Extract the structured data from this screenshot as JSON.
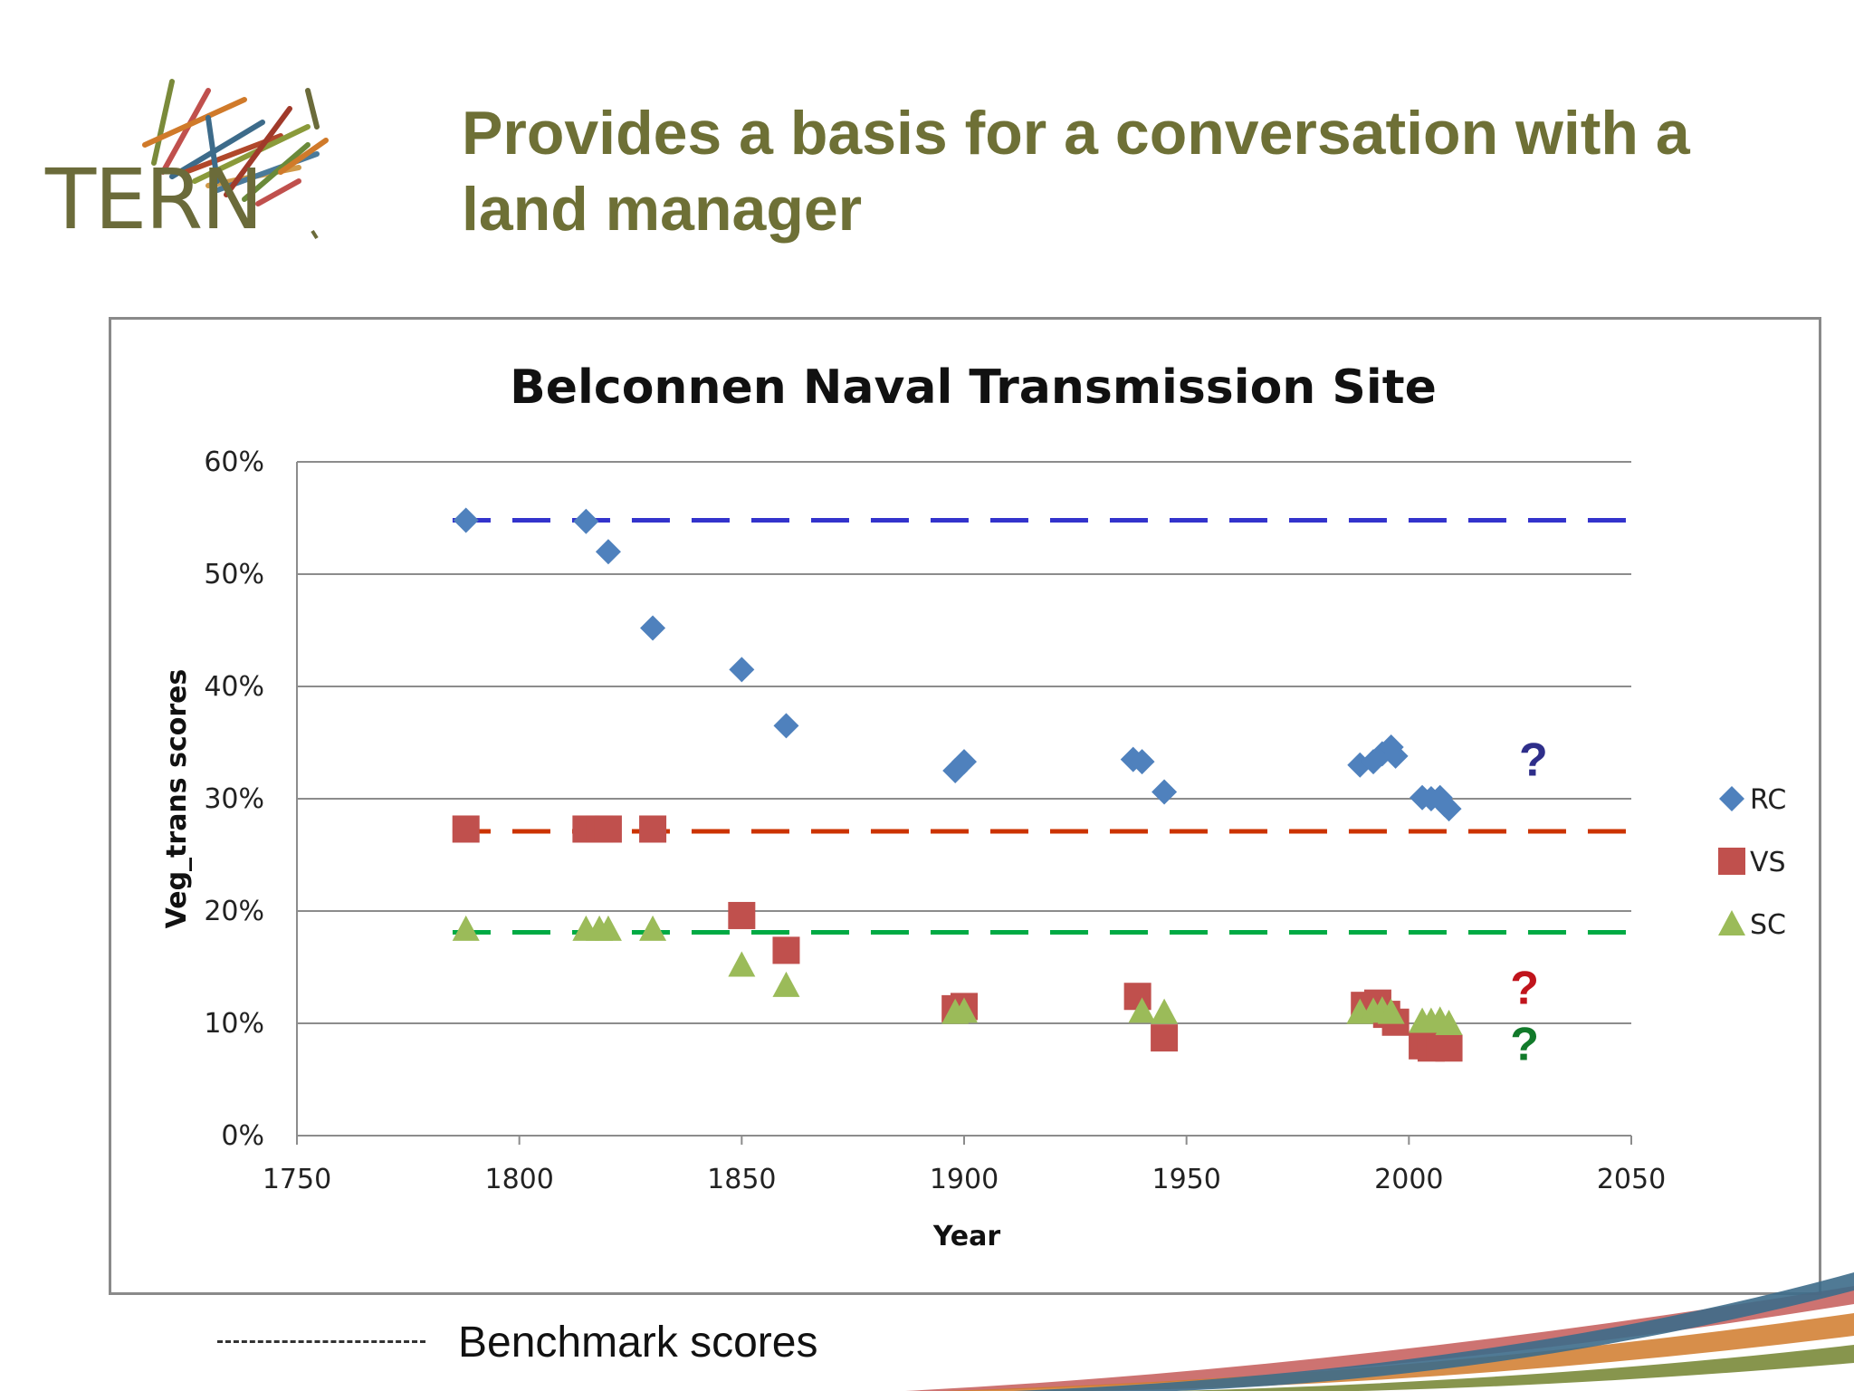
{
  "header": {
    "logo_text": "TERN",
    "title": "Provides a basis for a conversation with a land manager"
  },
  "footer": {
    "benchmark_label": "Benchmark scores"
  },
  "colors": {
    "title": "#6e7036",
    "rc": "#4f81bd",
    "vs": "#c0504d",
    "sc": "#9bbb59",
    "rc_benchmark": "#3333cc",
    "vs_benchmark": "#cc3300",
    "sc_benchmark": "#00aa44"
  },
  "chart_data": {
    "type": "scatter",
    "title": "Belconnen Naval Transmission Site",
    "xlabel": "Year",
    "ylabel": "Veg_trans scores",
    "xlim": [
      1750,
      2050
    ],
    "ylim": [
      0,
      60
    ],
    "x_ticks": [
      "1750",
      "1800",
      "1850",
      "1900",
      "1950",
      "2000",
      "2050"
    ],
    "y_ticks": [
      "0%",
      "10%",
      "20%",
      "30%",
      "40%",
      "50%",
      "60%"
    ],
    "grid": "horizontal",
    "legend_position": "right",
    "series": [
      {
        "name": "RC",
        "marker": "diamond",
        "color": "#4f81bd",
        "points": [
          [
            1788,
            54.8
          ],
          [
            1815,
            54.7
          ],
          [
            1820,
            52.0
          ],
          [
            1830,
            45.2
          ],
          [
            1850,
            41.5
          ],
          [
            1860,
            36.5
          ],
          [
            1898,
            32.5
          ],
          [
            1900,
            33.3
          ],
          [
            1938,
            33.5
          ],
          [
            1940,
            33.3
          ],
          [
            1945,
            30.6
          ],
          [
            1989,
            33.0
          ],
          [
            1992,
            33.3
          ],
          [
            1994,
            34.0
          ],
          [
            1996,
            34.6
          ],
          [
            1997,
            33.8
          ],
          [
            2003,
            30.1
          ],
          [
            2005,
            30.0
          ],
          [
            2007,
            30.1
          ],
          [
            2008,
            29.5
          ],
          [
            2009,
            29.1
          ]
        ]
      },
      {
        "name": "VS",
        "marker": "square",
        "color": "#c0504d",
        "points": [
          [
            1788,
            27.3
          ],
          [
            1815,
            27.3
          ],
          [
            1818,
            27.3
          ],
          [
            1820,
            27.3
          ],
          [
            1830,
            27.3
          ],
          [
            1850,
            19.6
          ],
          [
            1860,
            16.5
          ],
          [
            1898,
            11.3
          ],
          [
            1900,
            11.5
          ],
          [
            1939,
            12.4
          ],
          [
            1945,
            8.7
          ],
          [
            1990,
            11.6
          ],
          [
            1993,
            11.8
          ],
          [
            1995,
            10.8
          ],
          [
            1997,
            10.1
          ],
          [
            2003,
            8.0
          ],
          [
            2005,
            7.8
          ],
          [
            2007,
            8.0
          ],
          [
            2009,
            7.8
          ]
        ]
      },
      {
        "name": "SC",
        "marker": "triangle",
        "color": "#9bbb59",
        "points": [
          [
            1788,
            18.4
          ],
          [
            1815,
            18.4
          ],
          [
            1818,
            18.4
          ],
          [
            1820,
            18.4
          ],
          [
            1830,
            18.4
          ],
          [
            1850,
            15.2
          ],
          [
            1860,
            13.4
          ],
          [
            1898,
            11.0
          ],
          [
            1900,
            11.1
          ],
          [
            1940,
            11.1
          ],
          [
            1945,
            11.0
          ],
          [
            1989,
            11.0
          ],
          [
            1992,
            11.1
          ],
          [
            1994,
            11.2
          ],
          [
            1996,
            11.0
          ],
          [
            2003,
            10.2
          ],
          [
            2005,
            10.2
          ],
          [
            2007,
            10.3
          ],
          [
            2009,
            10.0
          ]
        ]
      }
    ],
    "benchmarks": [
      {
        "series": "RC",
        "value": 54.8,
        "color": "#3333cc"
      },
      {
        "series": "VS",
        "value": 27.1,
        "color": "#cc3300"
      },
      {
        "series": "SC",
        "value": 18.1,
        "color": "#00aa44"
      }
    ],
    "annotations": [
      {
        "text": "?",
        "x": 2028,
        "y": 33.5,
        "color": "#2e2e8a"
      },
      {
        "text": "?",
        "x": 2026,
        "y": 13.2,
        "color": "#c0141c"
      },
      {
        "text": "?",
        "x": 2026,
        "y": 8.2,
        "color": "#117a2a"
      }
    ]
  }
}
